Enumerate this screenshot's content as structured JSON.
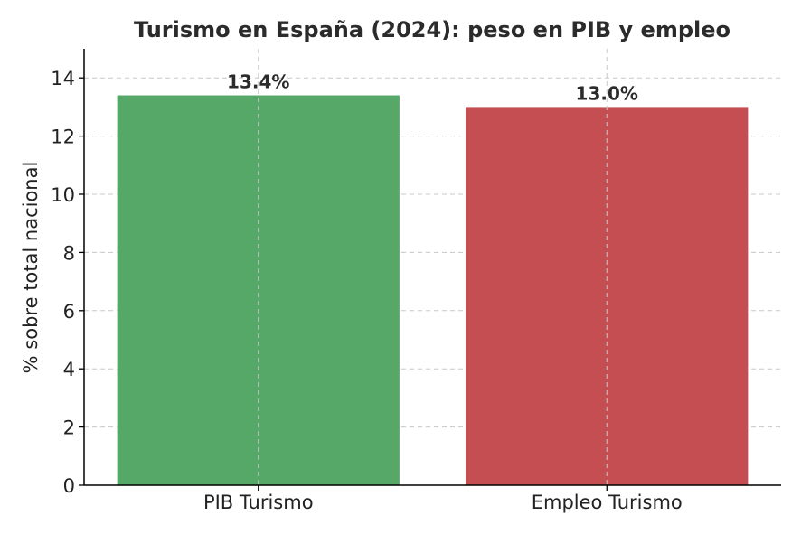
{
  "chart_data": {
    "type": "bar",
    "title": "Turismo en España (2024): peso en PIB y empleo",
    "xlabel": "",
    "ylabel": "% sobre total nacional",
    "categories": [
      "PIB Turismo",
      "Empleo Turismo"
    ],
    "values": [
      13.4,
      13.0
    ],
    "data_labels": [
      "13.4%",
      "13.0%"
    ],
    "colors": [
      "#55a868",
      "#c44e52"
    ],
    "ylim": [
      0,
      15
    ],
    "yticks": [
      0,
      2,
      4,
      6,
      8,
      10,
      12,
      14
    ],
    "grid": true,
    "legend": "none"
  }
}
